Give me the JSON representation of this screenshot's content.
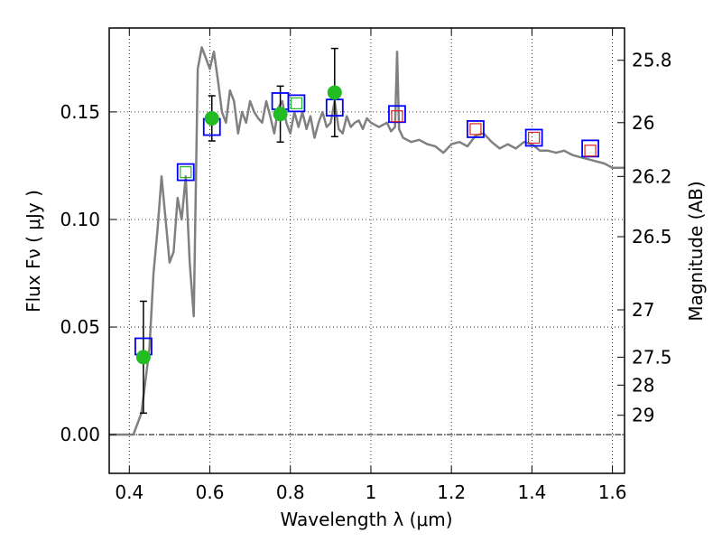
{
  "chart_data": {
    "type": "scatter",
    "xlabel": "Wavelength  λ (μm)",
    "ylabel": "Flux  Fν  ( μJy )",
    "ylabel_right": "Magnitude (AB)",
    "xlim": [
      0.35,
      1.63
    ],
    "ylim": [
      -0.018,
      0.189
    ],
    "grid": true,
    "x_ticks": [
      0.4,
      0.6,
      0.8,
      1.0,
      1.2,
      1.4,
      1.6
    ],
    "x_tick_labels": [
      "0.4",
      "0.6",
      "0.8",
      "1",
      "1.2",
      "1.4",
      "1.6"
    ],
    "y_ticks": [
      0.0,
      0.05,
      0.1,
      0.15
    ],
    "y_tick_labels": [
      "0.00",
      "0.05",
      "0.10",
      "0.15"
    ],
    "right_ticks": [
      {
        "label": "25.8",
        "flux": 0.174
      },
      {
        "label": "26",
        "flux": 0.145
      },
      {
        "label": "26.2",
        "flux": 0.12
      },
      {
        "label": "26.5",
        "flux": 0.092
      },
      {
        "label": "27",
        "flux": 0.058
      },
      {
        "label": "27.5",
        "flux": 0.036
      },
      {
        "label": "28",
        "flux": 0.023
      },
      {
        "label": "29",
        "flux": 0.009
      }
    ],
    "zero_line": 0.0,
    "series": [
      {
        "kind": "line",
        "color": "#808080",
        "x": [
          0.35,
          0.41,
          0.43,
          0.45,
          0.46,
          0.47,
          0.48,
          0.49,
          0.5,
          0.51,
          0.52,
          0.53,
          0.54,
          0.55,
          0.56,
          0.57,
          0.58,
          0.59,
          0.6,
          0.61,
          0.62,
          0.63,
          0.64,
          0.65,
          0.66,
          0.67,
          0.68,
          0.69,
          0.7,
          0.71,
          0.72,
          0.73,
          0.74,
          0.75,
          0.76,
          0.77,
          0.78,
          0.79,
          0.8,
          0.81,
          0.82,
          0.83,
          0.84,
          0.85,
          0.86,
          0.87,
          0.88,
          0.89,
          0.9,
          0.91,
          0.92,
          0.93,
          0.94,
          0.95,
          0.96,
          0.97,
          0.98,
          0.99,
          1.0,
          1.02,
          1.04,
          1.05,
          1.06,
          1.065,
          1.07,
          1.08,
          1.1,
          1.12,
          1.14,
          1.16,
          1.18,
          1.2,
          1.22,
          1.24,
          1.26,
          1.28,
          1.3,
          1.32,
          1.34,
          1.36,
          1.38,
          1.4,
          1.42,
          1.44,
          1.46,
          1.48,
          1.5,
          1.52,
          1.54,
          1.56,
          1.58,
          1.6,
          1.63
        ],
        "y": [
          0.0,
          0.0,
          0.01,
          0.04,
          0.075,
          0.095,
          0.12,
          0.1,
          0.08,
          0.085,
          0.11,
          0.1,
          0.12,
          0.08,
          0.055,
          0.17,
          0.18,
          0.175,
          0.17,
          0.178,
          0.165,
          0.15,
          0.145,
          0.16,
          0.155,
          0.14,
          0.15,
          0.145,
          0.155,
          0.15,
          0.147,
          0.145,
          0.155,
          0.148,
          0.14,
          0.152,
          0.155,
          0.145,
          0.14,
          0.15,
          0.143,
          0.15,
          0.142,
          0.148,
          0.138,
          0.145,
          0.15,
          0.143,
          0.145,
          0.155,
          0.142,
          0.14,
          0.148,
          0.143,
          0.145,
          0.146,
          0.142,
          0.147,
          0.145,
          0.143,
          0.145,
          0.141,
          0.143,
          0.178,
          0.142,
          0.138,
          0.136,
          0.137,
          0.135,
          0.134,
          0.131,
          0.135,
          0.136,
          0.134,
          0.139,
          0.14,
          0.136,
          0.133,
          0.135,
          0.133,
          0.136,
          0.135,
          0.132,
          0.132,
          0.131,
          0.132,
          0.13,
          0.129,
          0.128,
          0.127,
          0.126,
          0.124,
          0.124
        ]
      },
      {
        "kind": "errorbar",
        "marker": "circle",
        "color": "#22bb22",
        "x": [
          0.435,
          0.605,
          0.775,
          0.91
        ],
        "y": [
          0.036,
          0.147,
          0.149,
          0.159
        ],
        "yerr": [
          0.026,
          0.0105,
          0.013,
          0.0205
        ]
      },
      {
        "kind": "marker",
        "marker": "square",
        "color": "#0000ff",
        "size": "large",
        "x": [
          0.435,
          0.54,
          0.605,
          0.775,
          0.815,
          0.91,
          1.065,
          1.26,
          1.405,
          1.545
        ],
        "y": [
          0.041,
          0.122,
          0.143,
          0.155,
          0.154,
          0.152,
          0.149,
          0.142,
          0.138,
          0.133
        ]
      },
      {
        "kind": "marker",
        "marker": "square",
        "color": "#22bb22",
        "size": "small",
        "x": [
          0.54,
          0.815
        ],
        "y": [
          0.122,
          0.154
        ]
      },
      {
        "kind": "marker",
        "marker": "square",
        "color": "#dd2222",
        "size": "small",
        "x": [
          1.065,
          1.26,
          1.405,
          1.545
        ],
        "y": [
          0.148,
          0.142,
          0.138,
          0.132
        ]
      }
    ]
  }
}
